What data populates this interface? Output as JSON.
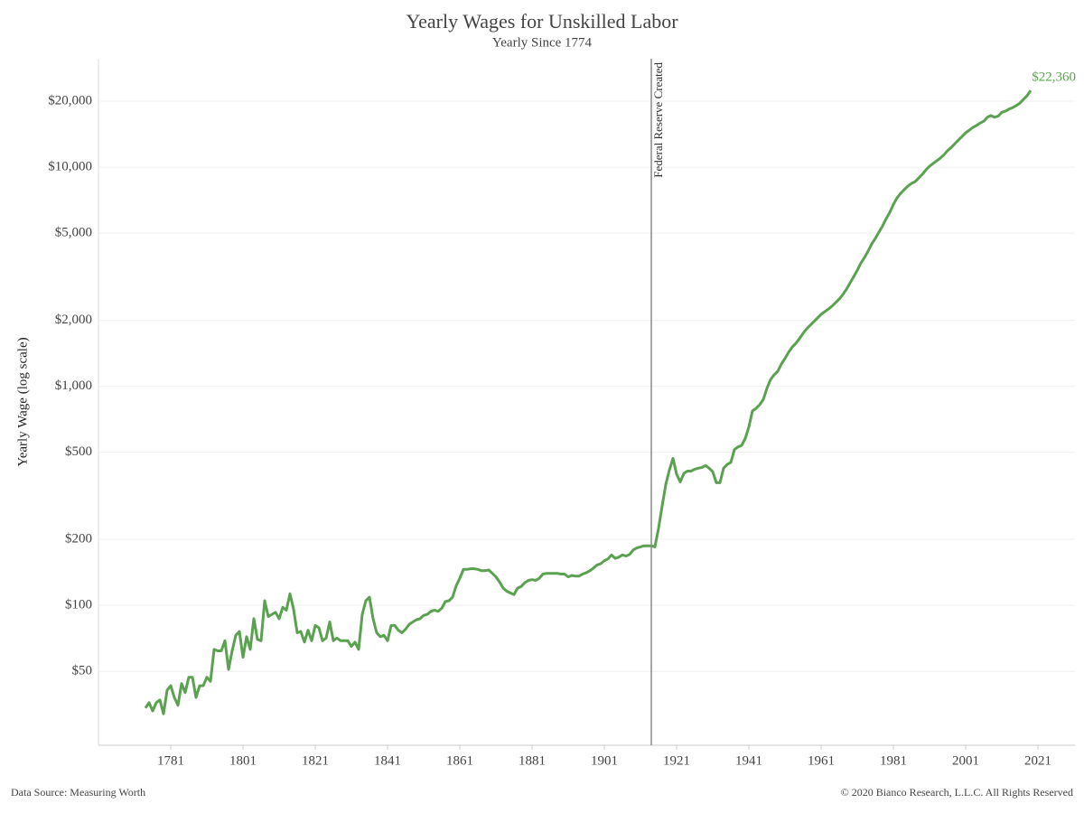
{
  "chart_data": {
    "type": "line",
    "title": "Yearly Wages for Unskilled Labor",
    "subtitle": "Yearly Since 1774",
    "y_label": "Yearly Wage (log scale)",
    "source": "Data Source: Measuring Worth",
    "copyright": "© 2020 Bianco Research, L.L.C. All Rights Reserved",
    "log_y": true,
    "grid": true,
    "xlim": [
      1761.25,
      2031.25
    ],
    "xticks": [
      1781,
      1801,
      1821,
      1841,
      1861,
      1881,
      1901,
      1921,
      1941,
      1961,
      1981,
      2001,
      2021
    ],
    "ylim": [
      23,
      31260
    ],
    "yticks": [
      {
        "value": 50,
        "label": "$50"
      },
      {
        "value": 100,
        "label": "$100"
      },
      {
        "value": 200,
        "label": "$200"
      },
      {
        "value": 500,
        "label": "$500"
      },
      {
        "value": 1000,
        "label": "$1,000"
      },
      {
        "value": 2000,
        "label": "$2,000"
      },
      {
        "value": 5000,
        "label": "$5,000"
      },
      {
        "value": 10000,
        "label": "$10,000"
      },
      {
        "value": 20000,
        "label": "$20,000"
      }
    ],
    "x": [
      1774,
      1775,
      1776,
      1777,
      1778,
      1779,
      1780,
      1781,
      1782,
      1783,
      1784,
      1785,
      1786,
      1787,
      1788,
      1789,
      1790,
      1791,
      1792,
      1793,
      1794,
      1795,
      1796,
      1797,
      1798,
      1799,
      1800,
      1801,
      1802,
      1803,
      1804,
      1805,
      1806,
      1807,
      1808,
      1809,
      1810,
      1811,
      1812,
      1813,
      1814,
      1815,
      1816,
      1817,
      1818,
      1819,
      1820,
      1821,
      1822,
      1823,
      1824,
      1825,
      1826,
      1827,
      1828,
      1829,
      1830,
      1831,
      1832,
      1833,
      1834,
      1835,
      1836,
      1837,
      1838,
      1839,
      1840,
      1841,
      1842,
      1843,
      1844,
      1845,
      1846,
      1847,
      1848,
      1849,
      1850,
      1851,
      1852,
      1853,
      1854,
      1855,
      1856,
      1857,
      1858,
      1859,
      1860,
      1861,
      1862,
      1863,
      1864,
      1865,
      1866,
      1867,
      1868,
      1869,
      1870,
      1871,
      1872,
      1873,
      1874,
      1875,
      1876,
      1877,
      1878,
      1879,
      1880,
      1881,
      1882,
      1883,
      1884,
      1885,
      1886,
      1887,
      1888,
      1889,
      1890,
      1891,
      1892,
      1893,
      1894,
      1895,
      1896,
      1897,
      1898,
      1899,
      1900,
      1901,
      1902,
      1903,
      1904,
      1905,
      1906,
      1907,
      1908,
      1909,
      1910,
      1911,
      1912,
      1913,
      1914,
      1915,
      1916,
      1917,
      1918,
      1919,
      1920,
      1921,
      1922,
      1923,
      1924,
      1925,
      1926,
      1927,
      1928,
      1929,
      1930,
      1931,
      1932,
      1933,
      1934,
      1935,
      1936,
      1937,
      1938,
      1939,
      1940,
      1941,
      1942,
      1943,
      1944,
      1945,
      1946,
      1947,
      1948,
      1949,
      1950,
      1951,
      1952,
      1953,
      1954,
      1955,
      1956,
      1957,
      1958,
      1959,
      1960,
      1961,
      1962,
      1963,
      1964,
      1965,
      1966,
      1967,
      1968,
      1969,
      1970,
      1971,
      1972,
      1973,
      1974,
      1975,
      1976,
      1977,
      1978,
      1979,
      1980,
      1981,
      1982,
      1983,
      1984,
      1985,
      1986,
      1987,
      1988,
      1989,
      1990,
      1991,
      1992,
      1993,
      1994,
      1995,
      1996,
      1997,
      1998,
      1999,
      2000,
      2001,
      2002,
      2003,
      2004,
      2005,
      2006,
      2007,
      2008,
      2009,
      2010,
      2011,
      2012,
      2013,
      2014,
      2015,
      2016,
      2017,
      2018,
      2019
    ],
    "series": [
      {
        "name": "Yearly Wage",
        "color": "#5aa150",
        "values": [
          34,
          36,
          33,
          36,
          37,
          32,
          41,
          43,
          38,
          35,
          44,
          40,
          47,
          47,
          38,
          43,
          43,
          47,
          45,
          63,
          62,
          62,
          69,
          51,
          62,
          73,
          76,
          58,
          72,
          63,
          87,
          70,
          69,
          105,
          89,
          91,
          93,
          87,
          98,
          95,
          113,
          96,
          75,
          76,
          68,
          77,
          69,
          81,
          79,
          69,
          71,
          84,
          69,
          71,
          69,
          69,
          69,
          65,
          68,
          63,
          91,
          105,
          109,
          87,
          75,
          72,
          73,
          69,
          81,
          81,
          77,
          75,
          78,
          82,
          84,
          86,
          87,
          90,
          91,
          94,
          95,
          94,
          97,
          104,
          105,
          109,
          123,
          133,
          146,
          146,
          147,
          147,
          146,
          144,
          144,
          145,
          140,
          135,
          128,
          120,
          116,
          114,
          112,
          120,
          122,
          127,
          130,
          131,
          130,
          133,
          139,
          140,
          140,
          140,
          140,
          139,
          139,
          135,
          137,
          136,
          136,
          139,
          141,
          144,
          148,
          153,
          155,
          160,
          163,
          170,
          164,
          166,
          170,
          168,
          171,
          179,
          183,
          185,
          187,
          187,
          187,
          185,
          225,
          284,
          356,
          415,
          469,
          397,
          366,
          400,
          410,
          410,
          418,
          423,
          426,
          435,
          423,
          408,
          363,
          363,
          423,
          440,
          449,
          514,
          529,
          537,
          578,
          654,
          772,
          793,
          824,
          872,
          980,
          1073,
          1128,
          1171,
          1263,
          1340,
          1430,
          1510,
          1570,
          1650,
          1745,
          1830,
          1900,
          1975,
          2050,
          2130,
          2190,
          2250,
          2320,
          2410,
          2500,
          2620,
          2770,
          2960,
          3160,
          3380,
          3650,
          3870,
          4140,
          4460,
          4730,
          5050,
          5390,
          5820,
          6220,
          6770,
          7240,
          7590,
          7890,
          8190,
          8430,
          8590,
          8920,
          9270,
          9720,
          10100,
          10400,
          10700,
          11000,
          11400,
          11900,
          12300,
          12800,
          13300,
          13800,
          14350,
          14750,
          15200,
          15500,
          15900,
          16200,
          16900,
          17200,
          16900,
          17100,
          17800,
          18000,
          18400,
          18700,
          19100,
          19600,
          20400,
          21200,
          22360
        ]
      }
    ],
    "annotations": [
      {
        "x": 1913,
        "text": "Federal Reserve Created"
      },
      {
        "x": 2019,
        "y": 22360,
        "text": "$22,360"
      }
    ]
  }
}
